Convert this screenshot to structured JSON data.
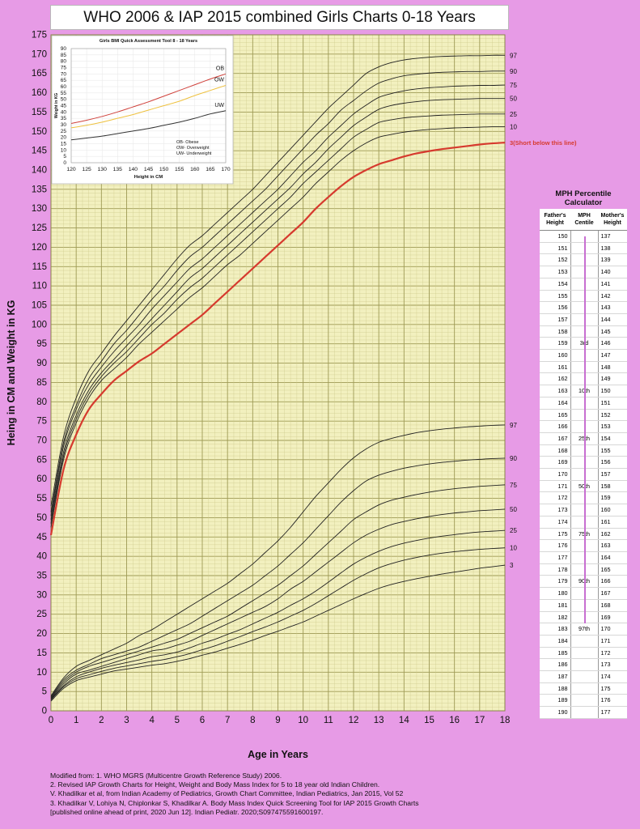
{
  "page": {
    "title": "WHO 2006 & IAP 2015 combined Girls Charts 0-18 Years"
  },
  "chart_data": [
    {
      "type": "line",
      "xlabel": "Age in Years",
      "ylabel": "Heing in CM and Weight in KG",
      "xlim": [
        0,
        18
      ],
      "ylim": [
        0,
        175
      ],
      "x_ticks": [
        0,
        1,
        2,
        3,
        4,
        5,
        6,
        7,
        8,
        9,
        10,
        11,
        12,
        13,
        14,
        15,
        16,
        17,
        18
      ],
      "y_ticks": [
        0,
        5,
        10,
        15,
        20,
        25,
        30,
        35,
        40,
        45,
        50,
        55,
        60,
        65,
        70,
        75,
        80,
        85,
        90,
        95,
        100,
        105,
        110,
        115,
        120,
        125,
        130,
        135,
        140,
        145,
        150,
        155,
        160,
        165,
        170,
        175
      ],
      "grid": true,
      "x": [
        0,
        0.5,
        1,
        1.5,
        2,
        2.5,
        3,
        3.5,
        4,
        4.5,
        5,
        5.5,
        6,
        6.5,
        7,
        7.5,
        8,
        8.5,
        9,
        9.5,
        10,
        10.5,
        11,
        11.5,
        12,
        12.5,
        13,
        13.5,
        14,
        14.5,
        15,
        15.5,
        16,
        16.5,
        17,
        17.5,
        18
      ],
      "height_series": [
        {
          "name": "97",
          "highlight": false,
          "values": [
            53,
            71,
            81,
            88,
            92.5,
            97,
            101,
            105,
            109,
            113,
            117,
            120.5,
            123,
            126,
            129,
            132,
            135,
            138.5,
            142,
            145.5,
            149,
            152.5,
            156,
            159,
            162,
            165,
            166.7,
            167.8,
            168.5,
            168.9,
            169.2,
            169.4,
            169.5,
            169.6,
            169.6,
            169.7,
            169.7
          ]
        },
        {
          "name": "90",
          "highlight": false,
          "values": [
            51.5,
            69.5,
            79,
            86,
            90.5,
            95,
            98.5,
            102.5,
            106.5,
            110,
            114,
            117.5,
            120,
            123,
            126,
            129,
            132,
            135,
            138.5,
            142,
            145.5,
            149,
            152,
            155.5,
            158,
            160.5,
            162.5,
            163.6,
            164.4,
            164.8,
            165.1,
            165.3,
            165.4,
            165.5,
            165.5,
            165.6,
            165.6
          ]
        },
        {
          "name": "75",
          "highlight": false,
          "values": [
            50.5,
            68.5,
            78,
            84.5,
            89,
            93,
            96.5,
            100,
            104,
            107.5,
            111,
            114.5,
            117,
            120,
            123,
            126,
            129,
            132,
            135,
            138.5,
            142,
            145,
            148.5,
            151.5,
            154.5,
            156.8,
            158.8,
            159.8,
            160.5,
            161,
            161.3,
            161.5,
            161.7,
            161.8,
            161.9,
            161.9,
            162
          ]
        },
        {
          "name": "50",
          "highlight": false,
          "values": [
            49.5,
            67,
            76.5,
            83,
            87.5,
            91,
            94.5,
            98,
            101.5,
            105,
            108.5,
            112,
            114.5,
            117.5,
            120.5,
            123.5,
            126.5,
            129.5,
            132.5,
            135.5,
            139,
            142,
            145.5,
            148.5,
            151.5,
            153.7,
            155.7,
            156.7,
            157.3,
            157.7,
            158,
            158.2,
            158.3,
            158.4,
            158.5,
            158.5,
            158.5
          ]
        },
        {
          "name": "25",
          "highlight": false,
          "values": [
            48.5,
            66,
            75.5,
            82,
            86.5,
            90,
            93,
            96.5,
            100,
            103,
            106.5,
            109.5,
            112,
            115,
            118,
            121,
            124,
            127,
            130,
            133,
            136.5,
            139.5,
            142.5,
            145.5,
            148.5,
            150.5,
            152.3,
            153,
            153.5,
            153.8,
            154,
            154.2,
            154.3,
            154.4,
            154.5,
            154.5,
            154.5
          ]
        },
        {
          "name": "10",
          "highlight": false,
          "values": [
            47.5,
            65,
            74.5,
            81,
            85.5,
            88.5,
            91.5,
            95,
            98,
            101,
            104,
            107,
            109.5,
            112.5,
            115.5,
            118,
            121,
            124,
            127,
            130,
            133,
            136.5,
            139.5,
            142.5,
            145,
            147,
            148.5,
            149.2,
            149.8,
            150.2,
            150.5,
            150.7,
            150.9,
            151,
            151.1,
            151.2,
            151.2
          ]
        },
        {
          "name": "3(Short below this line)",
          "highlight": true,
          "values": [
            45.5,
            62.5,
            71.5,
            78,
            82,
            85.5,
            88,
            90.5,
            92.5,
            95,
            97.5,
            100,
            102.5,
            105.5,
            108.5,
            111.5,
            114.5,
            117.5,
            120.5,
            123.5,
            126.5,
            130,
            133,
            135.8,
            138.2,
            140,
            141.5,
            142.5,
            143.5,
            144.3,
            144.9,
            145.4,
            145.8,
            146.2,
            146.6,
            146.9,
            147.1
          ]
        }
      ],
      "weight_series": [
        {
          "name": "97",
          "values": [
            3.9,
            8.5,
            11.5,
            13,
            14.5,
            16,
            17.5,
            19.5,
            21,
            23,
            25,
            27,
            29,
            31,
            33,
            35.5,
            38,
            41,
            44,
            47.5,
            51.5,
            55.5,
            59,
            62.5,
            65.5,
            67.8,
            69.5,
            70.5,
            71.3,
            72,
            72.5,
            72.9,
            73.2,
            73.5,
            73.7,
            73.9,
            74
          ]
        },
        {
          "name": "90",
          "values": [
            3.6,
            8,
            10.5,
            12,
            13.5,
            14.5,
            15.5,
            16.5,
            18,
            19.5,
            21,
            22.5,
            24.5,
            26.5,
            28.5,
            30.5,
            32.5,
            35,
            37.5,
            40.5,
            43.5,
            47,
            50.5,
            54,
            57,
            59.5,
            61,
            62,
            62.8,
            63.4,
            63.9,
            64.3,
            64.6,
            64.9,
            65.1,
            65.3,
            65.4
          ]
        },
        {
          "name": "75",
          "values": [
            3.4,
            7.5,
            10,
            11.5,
            12.5,
            13.5,
            14.5,
            15.5,
            16.5,
            17.5,
            18.5,
            20,
            21.5,
            23,
            24.5,
            26.5,
            28.5,
            30.5,
            32.5,
            35,
            37.5,
            40.5,
            43.5,
            46.5,
            49.5,
            51.5,
            53.3,
            54.5,
            55.3,
            56,
            56.6,
            57.1,
            57.5,
            57.8,
            58.1,
            58.3,
            58.5
          ]
        },
        {
          "name": "50",
          "values": [
            3.2,
            7,
            9.5,
            10.5,
            11.5,
            12.5,
            13.5,
            14.5,
            15.5,
            16,
            17,
            18,
            19.5,
            21,
            22.5,
            24,
            25.5,
            27,
            29,
            31.5,
            33.5,
            36,
            38.5,
            41,
            43.5,
            45.5,
            47,
            48.2,
            49,
            49.7,
            50.3,
            50.8,
            51.2,
            51.5,
            51.8,
            52,
            52.2
          ]
        },
        {
          "name": "25",
          "values": [
            3,
            6.5,
            8.8,
            10,
            11,
            11.8,
            12.5,
            13.2,
            14,
            14.5,
            15.2,
            16.3,
            17.5,
            18.5,
            19.8,
            21,
            22.5,
            24,
            25.5,
            27.3,
            29,
            31,
            33.3,
            35.7,
            38,
            39.8,
            41.3,
            42.5,
            43.4,
            44.1,
            44.7,
            45.2,
            45.6,
            46,
            46.3,
            46.5,
            46.7
          ]
        },
        {
          "name": "10",
          "values": [
            2.8,
            6.2,
            8.3,
            9.3,
            10.2,
            11,
            11.6,
            12.2,
            12.8,
            13.3,
            14,
            14.8,
            15.8,
            16.8,
            18,
            19.2,
            20.5,
            21.7,
            23,
            24.5,
            26,
            27.8,
            29.8,
            31.8,
            33.8,
            35.5,
            37,
            38.1,
            39,
            39.7,
            40.3,
            40.8,
            41.2,
            41.5,
            41.8,
            42,
            42.2
          ]
        },
        {
          "name": "3",
          "values": [
            2.5,
            5.8,
            7.8,
            8.7,
            9.5,
            10.3,
            10.8,
            11.3,
            11.8,
            12.2,
            12.8,
            13.5,
            14.4,
            15.2,
            16.2,
            17.2,
            18.3,
            19.5,
            20.6,
            21.8,
            23,
            24.5,
            26,
            27.5,
            29,
            30.4,
            31.7,
            32.7,
            33.5,
            34.2,
            34.8,
            35.4,
            35.9,
            36.4,
            36.9,
            37.3,
            37.7
          ]
        }
      ]
    },
    {
      "type": "line",
      "title": "Girls BMI Quick Assessment Tool 8 - 18 Years",
      "xlabel": "Height in CM",
      "ylabel": "Weight in KG",
      "xlim": [
        120,
        170
      ],
      "ylim": [
        0,
        90
      ],
      "x_ticks": [
        120,
        125,
        130,
        135,
        140,
        145,
        150,
        155,
        160,
        165,
        170
      ],
      "y_ticks": [
        0,
        5,
        10,
        15,
        20,
        25,
        30,
        35,
        40,
        45,
        50,
        55,
        60,
        65,
        70,
        75,
        80,
        85,
        90
      ],
      "grid": true,
      "x": [
        120,
        125,
        130,
        135,
        140,
        145,
        150,
        155,
        160,
        165,
        170
      ],
      "series": [
        {
          "name": "OB",
          "color": "#d0423c",
          "values": [
            31,
            33.5,
            36.5,
            40,
            44,
            48,
            52.5,
            57,
            61.5,
            66,
            70
          ]
        },
        {
          "name": "OW",
          "color": "#eec13e",
          "values": [
            27.5,
            29.5,
            32,
            35,
            38,
            41.5,
            45,
            48.5,
            53,
            57,
            61
          ]
        },
        {
          "name": "UW",
          "color": "#333333",
          "values": [
            18,
            19.5,
            21,
            23,
            25,
            27,
            29.5,
            32,
            35,
            38.5,
            41
          ]
        }
      ],
      "legend": [
        "OB- Obese",
        "OW- Overweight",
        "UW- Underweight"
      ]
    }
  ],
  "mph": {
    "caption": "MPH Percentile Calculator",
    "headers": [
      "Father's Height",
      "MPH Centile",
      "Mother's Height"
    ],
    "rows": [
      [
        "150",
        "",
        "137"
      ],
      [
        "151",
        "",
        "138"
      ],
      [
        "152",
        "",
        "139"
      ],
      [
        "153",
        "",
        "140"
      ],
      [
        "154",
        "",
        "141"
      ],
      [
        "155",
        "",
        "142"
      ],
      [
        "156",
        "",
        "143"
      ],
      [
        "157",
        "",
        "144"
      ],
      [
        "158",
        "",
        "145"
      ],
      [
        "159",
        "3rd",
        "146"
      ],
      [
        "160",
        "",
        "147"
      ],
      [
        "161",
        "",
        "148"
      ],
      [
        "162",
        "",
        "149"
      ],
      [
        "163",
        "10th",
        "150"
      ],
      [
        "164",
        "",
        "151"
      ],
      [
        "165",
        "",
        "152"
      ],
      [
        "166",
        "",
        "153"
      ],
      [
        "167",
        "25th",
        "154"
      ],
      [
        "168",
        "",
        "155"
      ],
      [
        "169",
        "",
        "156"
      ],
      [
        "170",
        "",
        "157"
      ],
      [
        "171",
        "50th",
        "158"
      ],
      [
        "172",
        "",
        "159"
      ],
      [
        "173",
        "",
        "160"
      ],
      [
        "174",
        "",
        "161"
      ],
      [
        "175",
        "75th",
        "162"
      ],
      [
        "176",
        "",
        "163"
      ],
      [
        "177",
        "",
        "164"
      ],
      [
        "178",
        "",
        "165"
      ],
      [
        "179",
        "90th",
        "166"
      ],
      [
        "180",
        "",
        "167"
      ],
      [
        "181",
        "",
        "168"
      ],
      [
        "182",
        "",
        "169"
      ],
      [
        "183",
        "97th",
        "170"
      ],
      [
        "184",
        "",
        "171"
      ],
      [
        "185",
        "",
        "172"
      ],
      [
        "186",
        "",
        "173"
      ],
      [
        "187",
        "",
        "174"
      ],
      [
        "188",
        "",
        "175"
      ],
      [
        "189",
        "",
        "176"
      ],
      [
        "190",
        "",
        "177"
      ]
    ]
  },
  "footnotes": [
    "Modified from: 1. WHO MGRS (Multicentre Growth Reference Study) 2006.",
    "2. Revised IAP Growth Charts for Height, Weight and Body Mass Index for 5 to 18 year old Indian Children.",
    "V. Khadilkar et al, from Indian Academy of Pediatrics, Growth Chart Committee, Indian Pediatrics, Jan 2015, Vol 52",
    "3. Khadilkar V, Lohiya N, Chiplonkar S, Khadilkar A. Body Mass Index Quick Screening Tool for IAP 2015 Growth Charts",
    " [published online ahead of print, 2020 Jun 12]. Indian Pediatr. 2020;S097475591600197."
  ],
  "colors": {
    "background": "#e79be6",
    "plot_background": "#f2f0bf",
    "grid_major": "#9e9a55",
    "grid_minor": "#cdc98a",
    "centile_line": "#222222",
    "short_line": "#d63a2e"
  }
}
